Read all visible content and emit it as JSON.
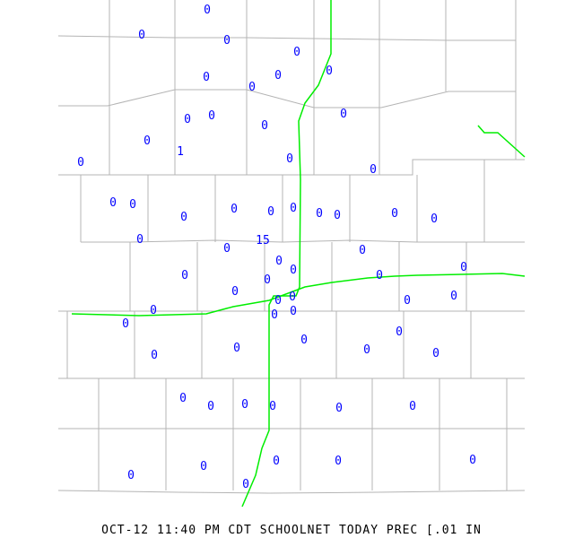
{
  "caption": "OCT-12 11:40 PM CDT SCHOOLNET TODAY PREC [.01 IN",
  "colors": {
    "value_text": "#0000ff",
    "county_lines": "#b4b4b4",
    "rivers": "#00ee00",
    "background": "#ffffff"
  },
  "stations": [
    "0",
    "0",
    "0",
    "0",
    "0",
    "0",
    "0",
    "0",
    "0",
    "0",
    "0",
    "0",
    "0",
    "1",
    "0",
    "0",
    "0",
    "0",
    "0",
    "0",
    "0",
    "0",
    "0",
    "0",
    "0",
    "0",
    "0",
    "15",
    "0",
    "0",
    "0",
    "0",
    "0",
    "0",
    "0",
    "0",
    "0",
    "0",
    "0",
    "0",
    "0",
    "0",
    "0",
    "0",
    "0",
    "0",
    "0",
    "0",
    "0",
    "0",
    "0",
    "0",
    "0",
    "0",
    "0",
    "0",
    "0",
    "0",
    "0",
    "0",
    "0",
    "0",
    "0",
    "0"
  ]
}
